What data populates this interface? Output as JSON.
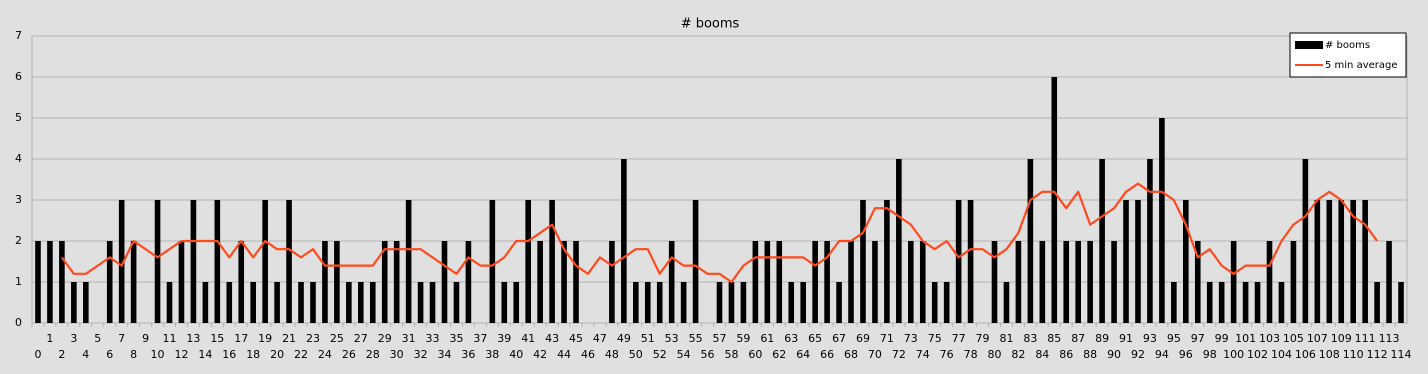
{
  "chart_data": {
    "type": "bar",
    "title": "# booms",
    "categories": [
      "0",
      "1",
      "2",
      "3",
      "4",
      "5",
      "6",
      "7",
      "8",
      "9",
      "10",
      "11",
      "12",
      "13",
      "14",
      "15",
      "16",
      "17",
      "18",
      "19",
      "20",
      "21",
      "22",
      "23",
      "24",
      "25",
      "26",
      "27",
      "28",
      "29",
      "30",
      "31",
      "32",
      "33",
      "34",
      "35",
      "36",
      "37",
      "38",
      "39",
      "40",
      "41",
      "42",
      "43",
      "44",
      "45",
      "46",
      "47",
      "48",
      "49",
      "50",
      "51",
      "52",
      "53",
      "54",
      "55",
      "56",
      "57",
      "58",
      "59",
      "60",
      "61",
      "62",
      "63",
      "64",
      "65",
      "66",
      "67",
      "68",
      "69",
      "70",
      "71",
      "72",
      "73",
      "74",
      "75",
      "76",
      "77",
      "78",
      "79",
      "80",
      "81",
      "82",
      "83",
      "84",
      "85",
      "86",
      "87",
      "88",
      "89",
      "90",
      "91",
      "92",
      "93",
      "94",
      "95",
      "96",
      "97",
      "98",
      "99",
      "100",
      "101",
      "102",
      "103",
      "104",
      "105",
      "106",
      "107",
      "108",
      "109",
      "110",
      "111",
      "112",
      "113",
      "114"
    ],
    "series": [
      {
        "name": "# booms",
        "type": "bar",
        "color": "#000000",
        "values": [
          2,
          2,
          2,
          1,
          1,
          0,
          2,
          3,
          2,
          0,
          3,
          1,
          2,
          3,
          1,
          3,
          1,
          2,
          1,
          3,
          1,
          3,
          1,
          1,
          2,
          2,
          1,
          1,
          1,
          2,
          2,
          3,
          1,
          1,
          2,
          1,
          2,
          0,
          3,
          1,
          1,
          3,
          2,
          3,
          2,
          2,
          0,
          0,
          2,
          4,
          1,
          1,
          1,
          2,
          1,
          3,
          0,
          1,
          1,
          1,
          2,
          2,
          2,
          1,
          1,
          2,
          2,
          1,
          2,
          3,
          2,
          3,
          4,
          2,
          2,
          1,
          1,
          3,
          3,
          0,
          2,
          1,
          2,
          4,
          2,
          6,
          2,
          2,
          2,
          4,
          2,
          3,
          3,
          4,
          5,
          1,
          3,
          2,
          1,
          1,
          2,
          1,
          1,
          2,
          1,
          2,
          4,
          3,
          3,
          3,
          3,
          3,
          1,
          2,
          1
        ]
      },
      {
        "name": "5 min average",
        "type": "line",
        "color": "#ff4a1c",
        "values": [
          null,
          null,
          1.6,
          1.2,
          1.2,
          1.4,
          1.6,
          1.4,
          2.0,
          1.8,
          1.6,
          1.8,
          2.0,
          2.0,
          2.0,
          2.0,
          1.6,
          2.0,
          1.6,
          2.0,
          1.8,
          1.8,
          1.6,
          1.8,
          1.4,
          1.4,
          1.4,
          1.4,
          1.4,
          1.8,
          1.8,
          1.8,
          1.8,
          1.6,
          1.4,
          1.2,
          1.6,
          1.4,
          1.4,
          1.6,
          2.0,
          2.0,
          2.2,
          2.4,
          1.8,
          1.4,
          1.2,
          1.6,
          1.4,
          1.6,
          1.8,
          1.8,
          1.2,
          1.6,
          1.4,
          1.4,
          1.2,
          1.2,
          1.0,
          1.4,
          1.6,
          1.6,
          1.6,
          1.6,
          1.6,
          1.4,
          1.6,
          2.0,
          2.0,
          2.2,
          2.8,
          2.8,
          2.6,
          2.4,
          2.0,
          1.8,
          2.0,
          1.6,
          1.8,
          1.8,
          1.6,
          1.8,
          2.2,
          3.0,
          3.2,
          3.2,
          2.8,
          3.2,
          2.4,
          2.6,
          2.8,
          3.2,
          3.4,
          3.2,
          3.2,
          3.0,
          2.4,
          1.6,
          1.8,
          1.4,
          1.2,
          1.4,
          1.4,
          1.4,
          2.0,
          2.4,
          2.6,
          3.0,
          3.2,
          3.0,
          2.6,
          2.4,
          2.0,
          null,
          null
        ]
      }
    ],
    "ylim": [
      0,
      7
    ],
    "yticks": [
      0,
      1,
      2,
      3,
      4,
      5,
      6,
      7
    ],
    "grid": true,
    "legend": "top-right"
  }
}
